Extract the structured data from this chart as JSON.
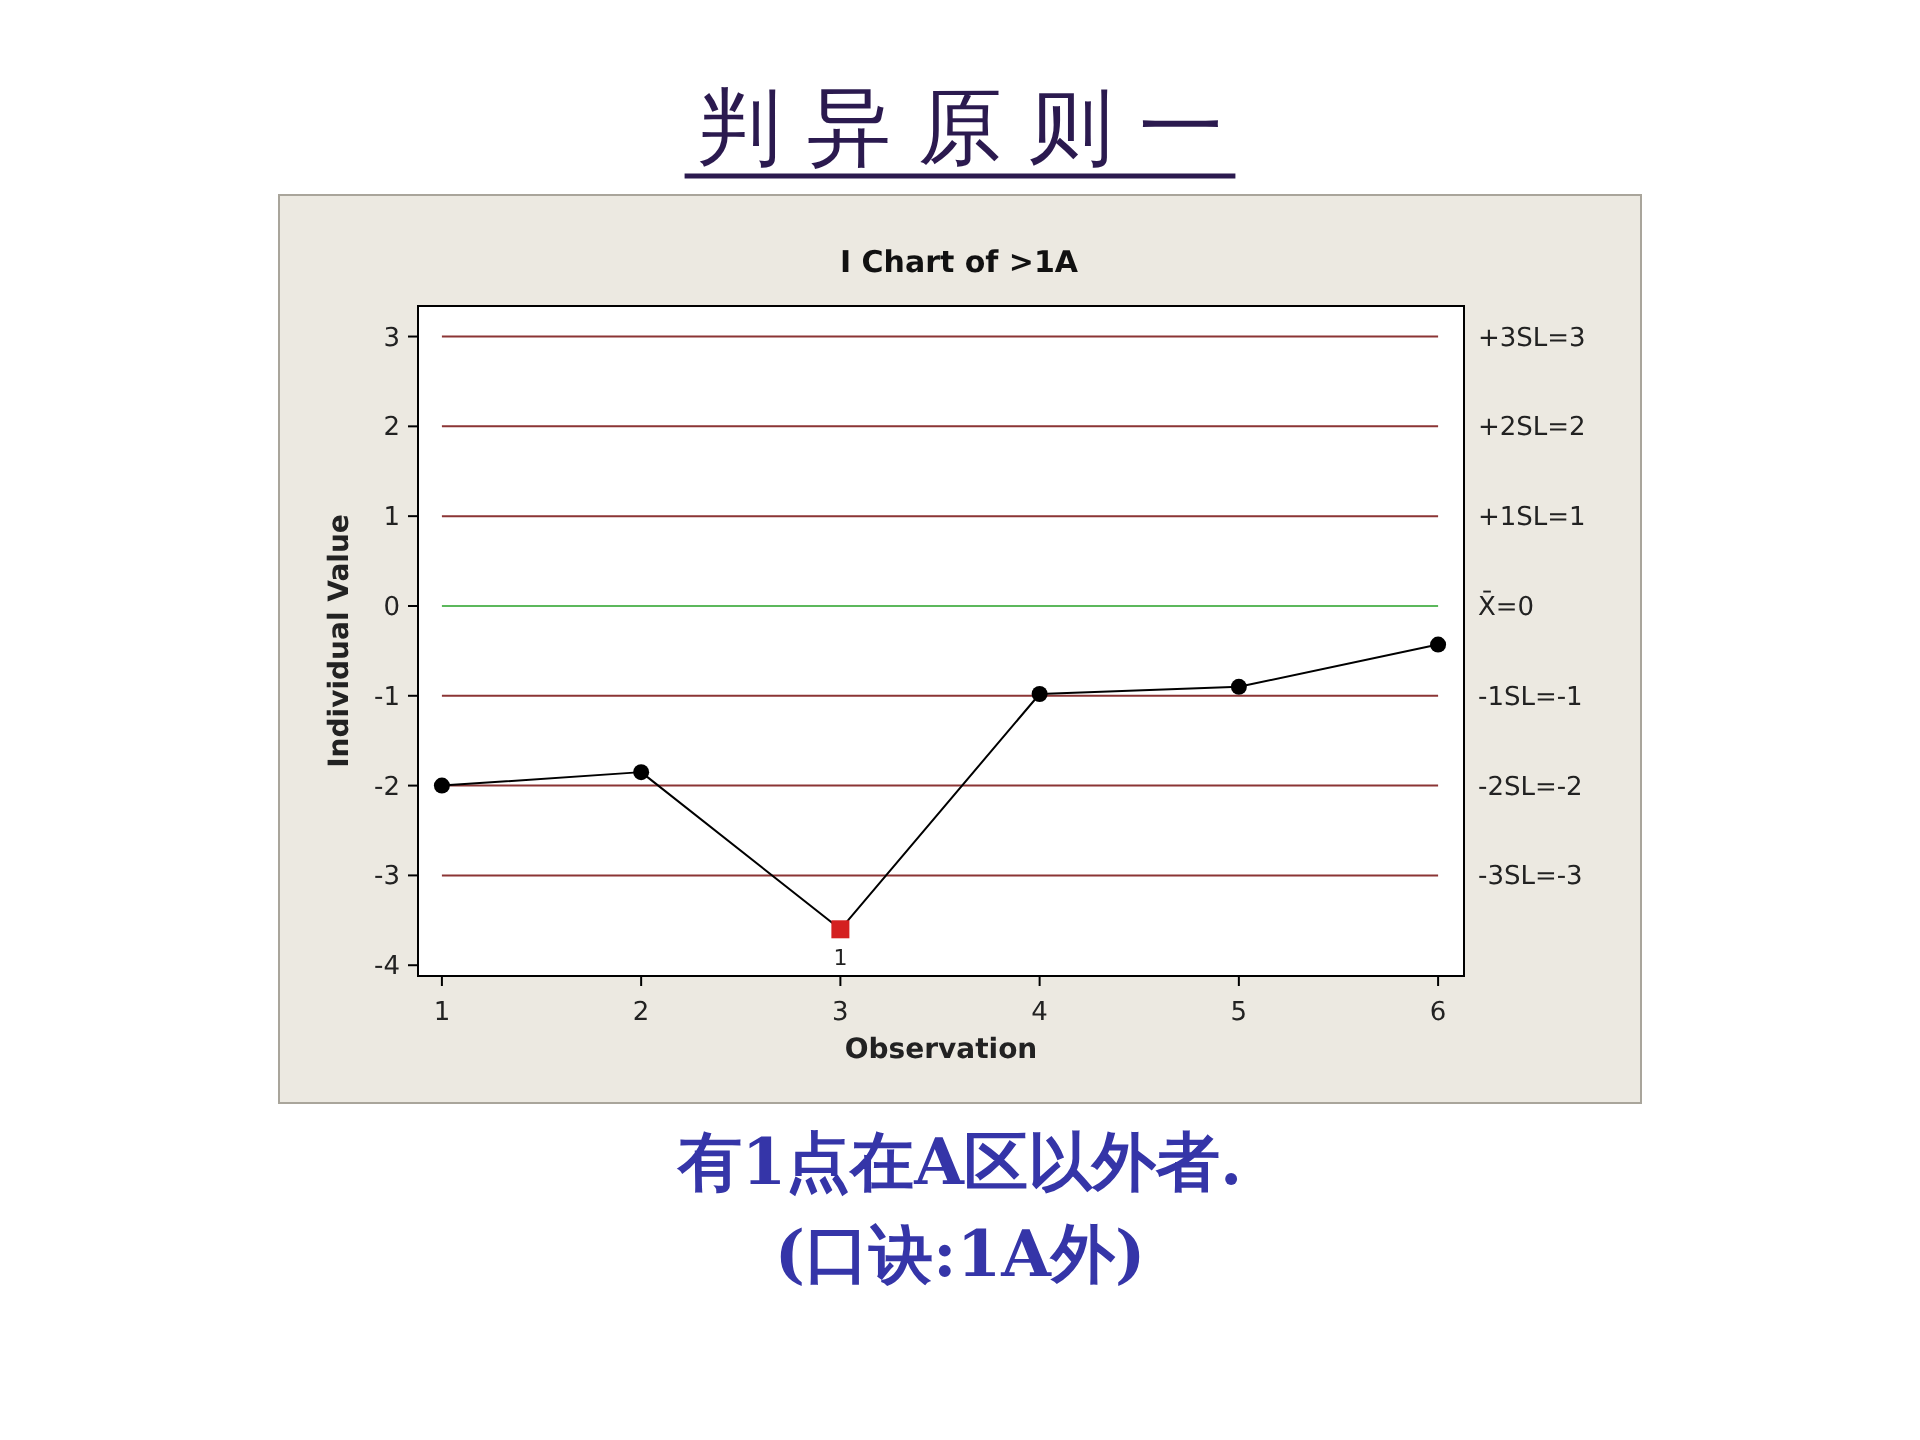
{
  "chart_data": {
    "type": "line",
    "title": "判 异 原 则 一",
    "subtitle": "I Chart of >1A",
    "xlabel": "Observation",
    "ylabel": "Individual Value",
    "xlim": [
      0.88,
      6.13
    ],
    "xticks": [
      1,
      2,
      3,
      4,
      5,
      6
    ],
    "ylim": [
      -4.12,
      3.34
    ],
    "yticks": [
      -4,
      -3,
      -2,
      -1,
      0,
      1,
      2,
      3
    ],
    "series": [
      {
        "color": "#000000",
        "marker": "none",
        "x": [
          1,
          2,
          3,
          4,
          5,
          6
        ],
        "values": [
          -2.0,
          -1.85,
          -3.6,
          -0.98,
          -0.9,
          -0.43
        ]
      },
      {
        "type": "scatter",
        "color": "#000000",
        "marker": "circle",
        "x": [
          1,
          2,
          4,
          5,
          6
        ],
        "values": [
          -2.0,
          -1.85,
          -0.98,
          -0.9,
          -0.43
        ]
      },
      {
        "type": "scatter",
        "color": "#d42020",
        "marker": "square",
        "x": [
          3
        ],
        "values": [
          -3.6
        ]
      }
    ],
    "ref_lines": [
      {
        "axis": "y",
        "value": 3,
        "label": "+3SL=3",
        "color": "#8b3535"
      },
      {
        "axis": "y",
        "value": 2,
        "label": "+2SL=2",
        "color": "#8b3535"
      },
      {
        "axis": "y",
        "value": 1,
        "label": "+1SL=1",
        "color": "#8b3535"
      },
      {
        "axis": "y",
        "value": 0,
        "label": "X̄=0",
        "color": "#5cb85c"
      },
      {
        "axis": "y",
        "value": -1,
        "label": "-1SL=-1",
        "color": "#8b3535"
      },
      {
        "axis": "y",
        "value": -2,
        "label": "-2SL=-2",
        "color": "#8b3535"
      },
      {
        "axis": "y",
        "value": -3,
        "label": "-3SL=-3",
        "color": "#8b3535"
      }
    ],
    "annotations": [
      {
        "text": "1",
        "x": 3,
        "y": -3.6
      },
      "有1点在A区以外者.",
      "(口诀:1A外)"
    ]
  }
}
